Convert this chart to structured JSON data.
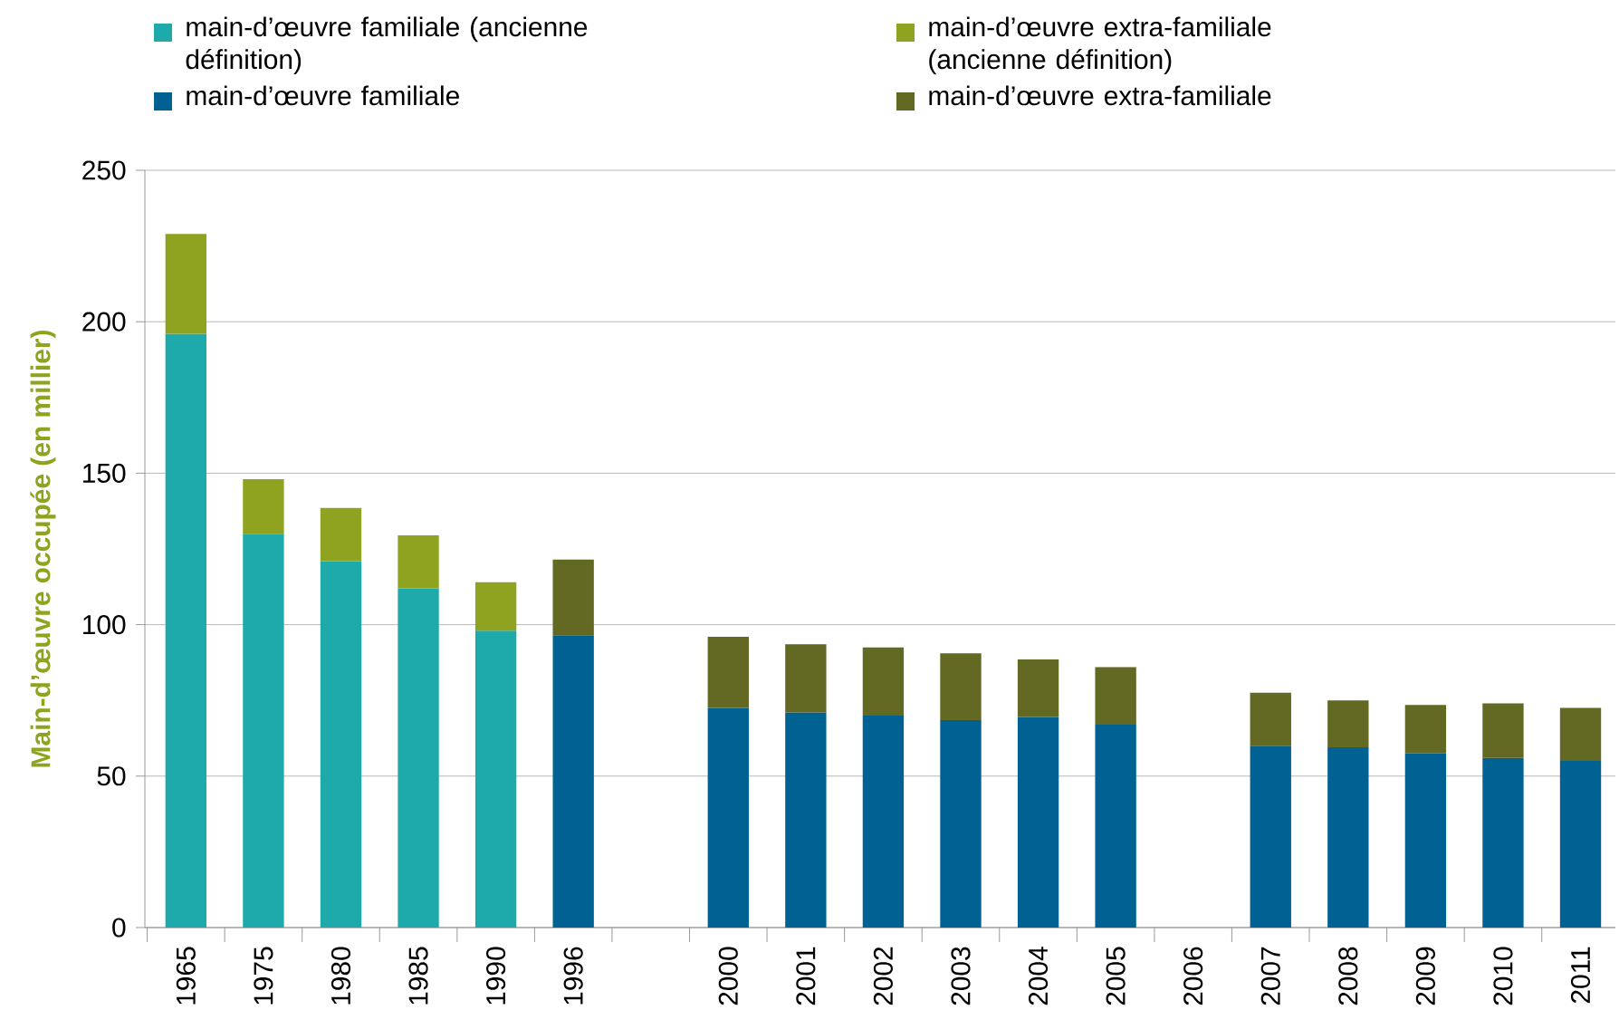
{
  "chart_data": {
    "type": "bar",
    "stacked": true,
    "ylabel": "Main-d’œuvre occupée (en millier)",
    "categories": [
      "1965",
      "1975",
      "1980",
      "1985",
      "1990",
      "1996",
      null,
      "2000",
      "2001",
      "2002",
      "2003",
      "2004",
      "2005",
      "2006",
      "2007",
      "2008",
      "2009",
      "2010",
      "2011"
    ],
    "series": [
      {
        "name": "main-d’œuvre familiale (ancienne définition)",
        "color": "#1eaaaa",
        "values": [
          196,
          130,
          121,
          112,
          98,
          null,
          null,
          null,
          null,
          null,
          null,
          null,
          null,
          null,
          null,
          null,
          null,
          null,
          null
        ]
      },
      {
        "name": "main-d’œuvre extra-familiale (ancienne définition)",
        "color": "#90a320",
        "values": [
          33,
          18,
          17.5,
          17.5,
          16,
          null,
          null,
          null,
          null,
          null,
          null,
          null,
          null,
          null,
          null,
          null,
          null,
          null,
          null
        ]
      },
      {
        "name": "main-d’œuvre familiale",
        "color": "#006193",
        "values": [
          null,
          null,
          null,
          null,
          null,
          96.5,
          null,
          72.5,
          71,
          70,
          68.5,
          69.5,
          67,
          null,
          60,
          59.5,
          57.5,
          56,
          55
        ]
      },
      {
        "name": "main-d’œuvre extra-familiale",
        "color": "#636822",
        "values": [
          null,
          null,
          null,
          null,
          null,
          25,
          null,
          23.5,
          22.5,
          22.5,
          22,
          19,
          19,
          null,
          17.5,
          15.5,
          16,
          18,
          17.5
        ]
      }
    ],
    "ylim": [
      0,
      250
    ],
    "yticks": [
      0,
      50,
      100,
      150,
      200,
      250
    ],
    "grid": "y",
    "legend": "top"
  }
}
